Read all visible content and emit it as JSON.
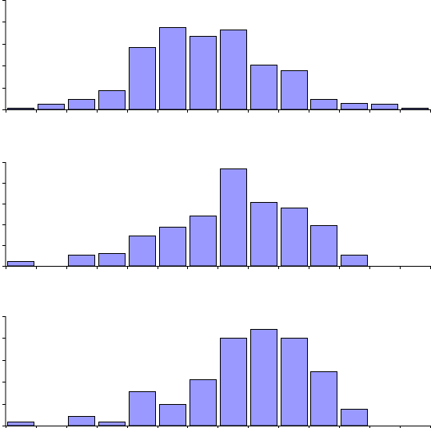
{
  "colors": {
    "bar_fill": "#9999ff",
    "bar_stroke": "#000000",
    "axis": "#000000"
  },
  "chart_data": [
    {
      "type": "bar",
      "title": "",
      "xlabel": "",
      "ylabel": "",
      "ylim": [
        0,
        5
      ],
      "grid": false,
      "legend": "none",
      "category_count": 14,
      "values": [
        0.08,
        0.24,
        0.46,
        0.86,
        2.84,
        3.76,
        3.36,
        3.66,
        2.06,
        1.78,
        0.46,
        0.3,
        0.26,
        0.06
      ]
    },
    {
      "type": "bar",
      "title": "",
      "xlabel": "",
      "ylabel": "",
      "ylim": [
        0,
        5
      ],
      "grid": false,
      "legend": "none",
      "category_count": 14,
      "values": [
        0.25,
        0,
        0.52,
        0.62,
        1.46,
        1.88,
        2.42,
        4.7,
        3.08,
        2.8,
        1.96,
        0.52,
        0,
        0
      ]
    },
    {
      "type": "bar",
      "title": "",
      "xlabel": "",
      "ylabel": "",
      "ylim": [
        0,
        5
      ],
      "grid": false,
      "legend": "none",
      "category_count": 14,
      "values": [
        0.2,
        0,
        0.42,
        0.2,
        1.56,
        0.98,
        2.1,
        4.0,
        4.4,
        4.0,
        2.48,
        0.78,
        0,
        0
      ]
    }
  ]
}
